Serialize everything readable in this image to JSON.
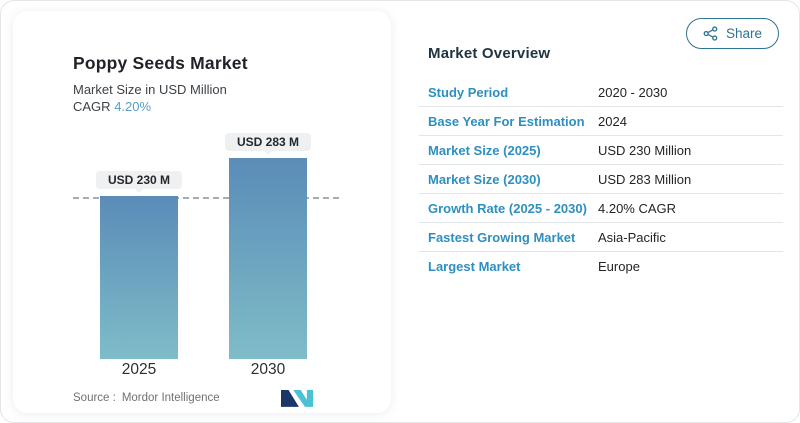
{
  "share": {
    "label": "Share"
  },
  "chart": {
    "title": "Poppy Seeds Market",
    "subtitle": "Market Size in USD Million",
    "cagr_label": "CAGR",
    "cagr_value": "4.20%",
    "source_label": "Source :",
    "source_value": "Mordor Intelligence"
  },
  "chart_data": {
    "type": "bar",
    "categories": [
      "2025",
      "2030"
    ],
    "values": [
      230,
      283
    ],
    "bar_labels": [
      "USD 230 M",
      "USD 283 M"
    ],
    "title": "Poppy Seeds Market",
    "ylabel": "Market Size in USD Million",
    "dashed_line_value": 230,
    "legend": "none",
    "grid": "off",
    "colors": {
      "bar_gradient_top": "#5a8cb8",
      "bar_gradient_bottom": "#7fbcc8",
      "label_pill_bg": "#eef0f2",
      "dashed_line": "#a7acb1"
    }
  },
  "overview": {
    "title": "Market Overview",
    "rows": [
      {
        "label": "Study Period",
        "value": "2020 - 2030"
      },
      {
        "label": "Base Year For Estimation",
        "value": "2024"
      },
      {
        "label": "Market Size (2025)",
        "value": "USD 230 Million"
      },
      {
        "label": "Market Size (2030)",
        "value": "USD 283 Million"
      },
      {
        "label": "Growth Rate (2025 - 2030)",
        "value": "4.20% CAGR"
      },
      {
        "label": "Fastest Growing Market",
        "value": "Asia-Pacific"
      },
      {
        "label": "Largest Market",
        "value": "Europe"
      }
    ]
  },
  "icons": {
    "share": "share-nodes-icon",
    "logo": "mordor-intelligence-logo"
  },
  "colors": {
    "accent_blue": "#2e8fc0",
    "share_teal": "#2f7293",
    "cagr_blue": "#5b9cc9",
    "heading_dark": "#1e3442"
  }
}
